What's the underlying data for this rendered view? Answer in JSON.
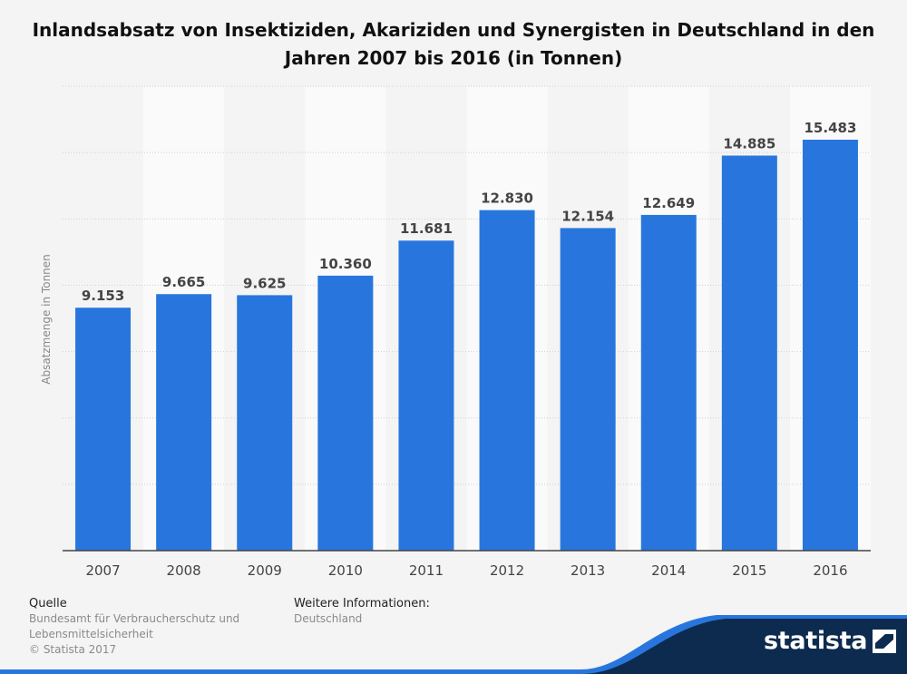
{
  "chart_data": {
    "type": "bar",
    "title": "Inlandsabsatz von Insektiziden, Akariziden und Synergisten in Deutschland in den Jahren 2007 bis 2016 (in Tonnen)",
    "xlabel": "",
    "ylabel": "Absatzmenge in Tonnen",
    "ylim": [
      0,
      17500
    ],
    "categories": [
      "2007",
      "2008",
      "2009",
      "2010",
      "2011",
      "2012",
      "2013",
      "2014",
      "2015",
      "2016"
    ],
    "values": [
      9153,
      9665,
      9625,
      10360,
      11681,
      12830,
      12154,
      12649,
      14885,
      15483
    ],
    "value_labels": [
      "9.153",
      "9.665",
      "9.625",
      "10.360",
      "11.681",
      "12.830",
      "12.154",
      "12.649",
      "14.885",
      "15.483"
    ],
    "grid": true,
    "colors": {
      "bar": "#2876dd",
      "band_light": "#fafafa",
      "band_dark": "#f4f4f4",
      "grid": "#cfcfcf",
      "axis": "#444444",
      "value_label": "#444444",
      "tick_label": "#444444",
      "ylabel": "#888888"
    }
  },
  "footer": {
    "source_heading": "Quelle",
    "source_line1": "Bundesamt für Verbraucherschutz und",
    "source_line2": "Lebensmittelsicherheit",
    "copyright": "© Statista 2017",
    "more_info_heading": "Weitere Informationen:",
    "more_info_text": "Deutschland"
  },
  "brand": {
    "logo_text": "statista",
    "icon": "statista-logo-icon",
    "band_color": "#0d2b4e",
    "accent_color": "#2876dd"
  }
}
